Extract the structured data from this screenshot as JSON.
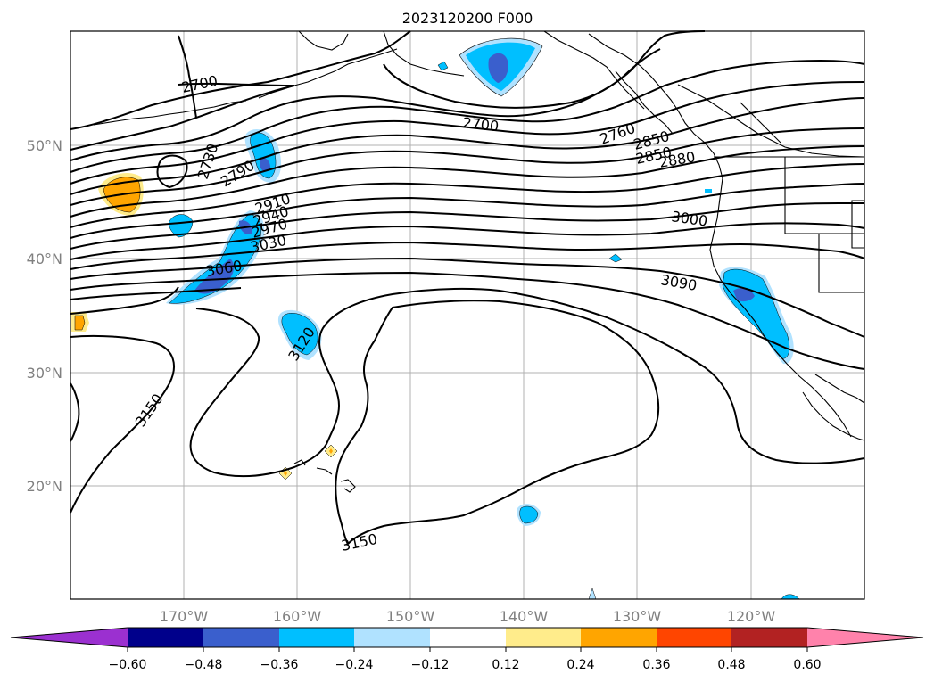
{
  "title": "2023120200 F000",
  "lat_labels": [
    "50°N",
    "40°N",
    "30°N",
    "20°N"
  ],
  "lon_labels": [
    "170°W",
    "160°W",
    "150°W",
    "140°W",
    "130°W",
    "120°W"
  ],
  "colorbar": {
    "ticks": [
      "−0.60",
      "−0.48",
      "−0.36",
      "−0.24",
      "−0.12",
      "0.12",
      "0.24",
      "0.36",
      "0.48",
      "0.60"
    ],
    "colors": [
      "#9b30d0",
      "#00008b",
      "#3a5fcd",
      "#00bfff",
      "#b0e2ff",
      "#ffffff",
      "#ffec8b",
      "#ffa500",
      "#ff4500",
      "#b22222",
      "#ff82ab"
    ]
  },
  "contour_labels": [
    "2700",
    "2700",
    "2730",
    "2760",
    "2790",
    "2850",
    "2850",
    "2880",
    "2910",
    "2940",
    "2970",
    "3000",
    "3030",
    "3060",
    "3090",
    "3120",
    "3150",
    "3150"
  ],
  "shading_colors": {
    "blue": "#00bfff",
    "dark_blue": "#3a5fcd",
    "light_blue": "#b0e2ff",
    "orange": "#ffa500",
    "yellow": "#ffec8b"
  }
}
